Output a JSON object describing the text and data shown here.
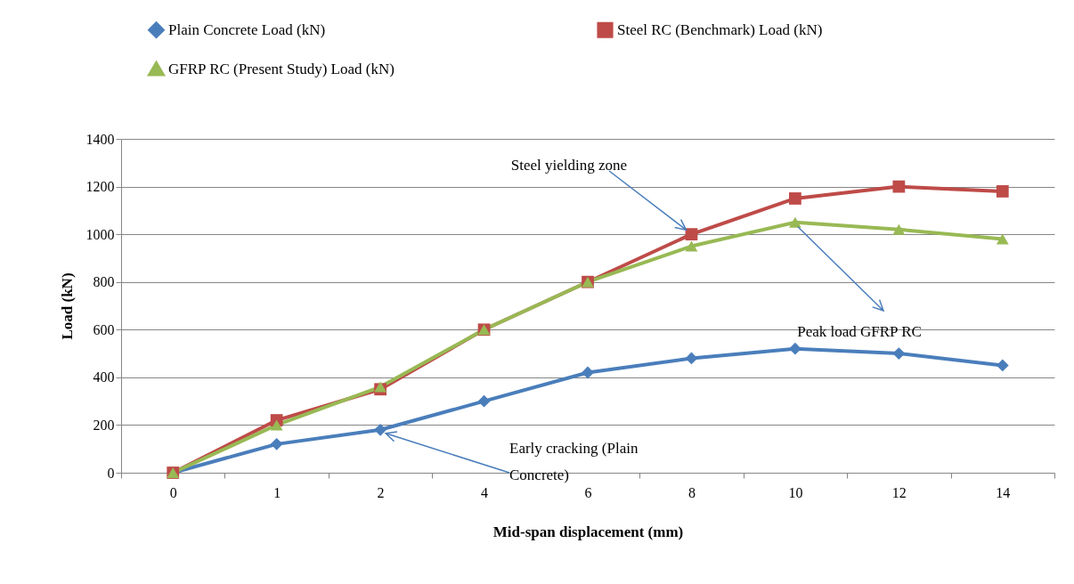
{
  "chart_data": {
    "type": "line",
    "xlabel": "Mid-span displacement (mm)",
    "ylabel": "Load (kN)",
    "categories": [
      "0",
      "1",
      "2",
      "4",
      "6",
      "8",
      "10",
      "12",
      "14"
    ],
    "series": [
      {
        "name": "Plain Concrete Load (kN)",
        "color": "#4a7ebb",
        "marker": "diamond",
        "values": [
          0,
          120,
          180,
          300,
          420,
          480,
          520,
          500,
          450
        ]
      },
      {
        "name": "Steel RC (Benchmark) Load (kN)",
        "color": "#be4b48",
        "marker": "square",
        "values": [
          0,
          220,
          350,
          600,
          800,
          1000,
          1150,
          1200,
          1180
        ]
      },
      {
        "name": "GFRP RC (Present Study) Load (kN)",
        "color": "#98b954",
        "marker": "triangle",
        "values": [
          0,
          200,
          360,
          600,
          800,
          950,
          1050,
          1020,
          980
        ]
      }
    ],
    "ylim": [
      0,
      1400
    ],
    "yticks": [
      0,
      200,
      400,
      600,
      800,
      1000,
      1200,
      1400
    ],
    "grid": "y",
    "legend": "top",
    "annotations": [
      {
        "text": "Steel yielding zone",
        "x": "8",
        "y": 1000
      },
      {
        "text": "Peak load GFRP RC",
        "x": "10",
        "y": 1050
      },
      {
        "text": "Early cracking (Plain Concrete)",
        "x": "2",
        "y": 180
      }
    ]
  }
}
